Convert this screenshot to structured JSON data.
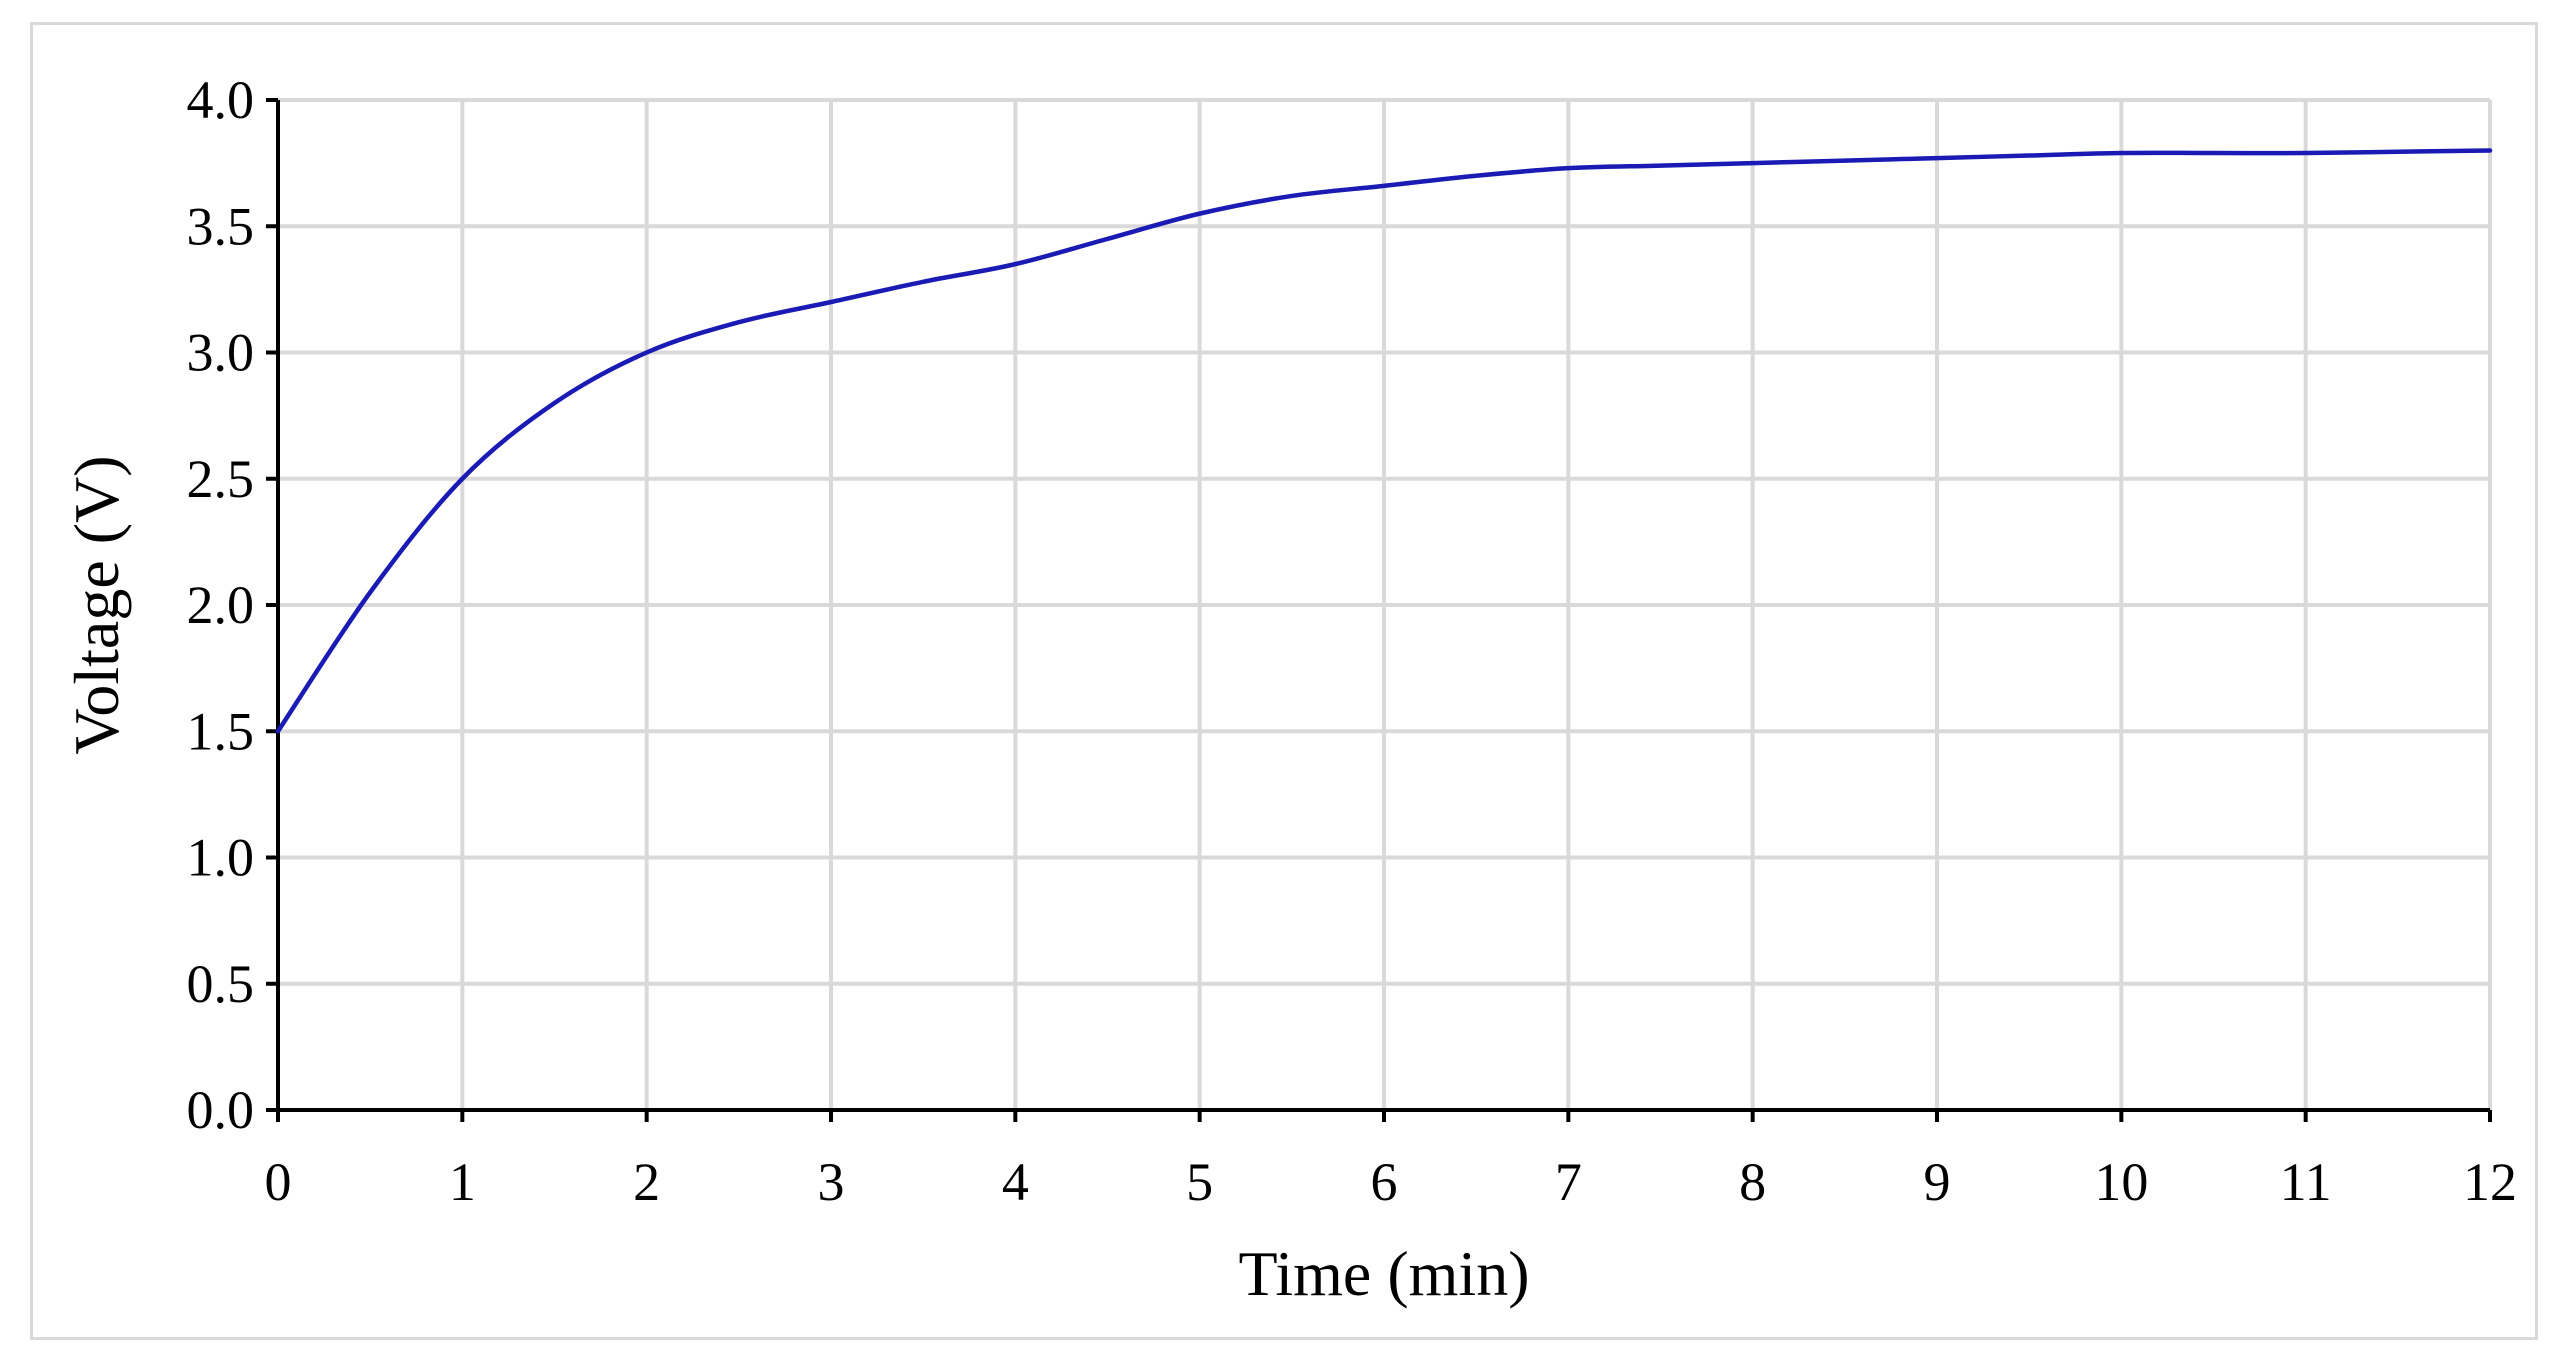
{
  "chart_data": {
    "type": "line",
    "title": "",
    "xlabel": "Time (min)",
    "ylabel": "Voltage (V)",
    "xlim": [
      0,
      12
    ],
    "ylim": [
      0,
      4.0
    ],
    "xticks": [
      "0",
      "1",
      "2",
      "3",
      "4",
      "5",
      "6",
      "7",
      "8",
      "9",
      "10",
      "11",
      "12"
    ],
    "yticks": [
      "0.0",
      "0.5",
      "1.0",
      "1.5",
      "2.0",
      "2.5",
      "3.0",
      "3.5",
      "4.0"
    ],
    "grid": true,
    "legend": "none",
    "series": [
      {
        "color": "#1a1ab4",
        "x": [
          0,
          0.5,
          1,
          1.5,
          2,
          2.5,
          3,
          3.5,
          4,
          4.5,
          5,
          5.5,
          6,
          6.5,
          7,
          7.5,
          8,
          8.5,
          9,
          9.5,
          10,
          10.5,
          11,
          11.5,
          12
        ],
        "y": [
          1.5,
          2.05,
          2.5,
          2.8,
          3.0,
          3.12,
          3.2,
          3.28,
          3.35,
          3.45,
          3.55,
          3.62,
          3.66,
          3.7,
          3.73,
          3.74,
          3.75,
          3.76,
          3.77,
          3.78,
          3.79,
          3.79,
          3.79,
          3.795,
          3.8
        ]
      }
    ]
  }
}
